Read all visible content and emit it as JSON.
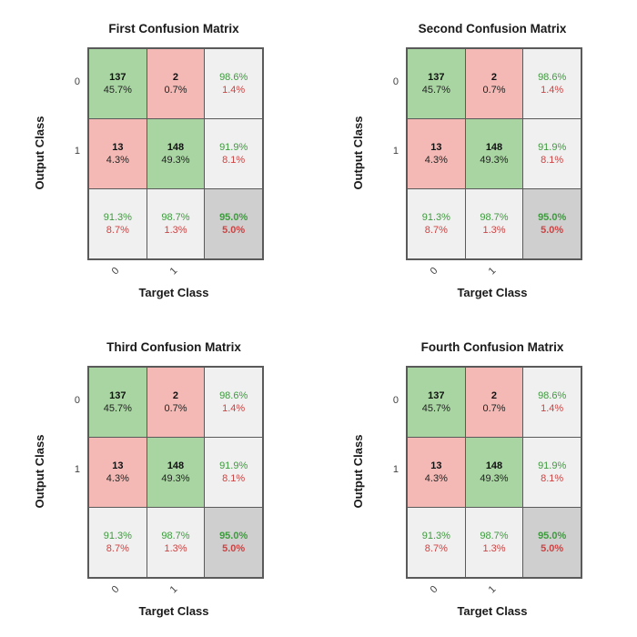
{
  "palette": {
    "correct_fill": "#a8d5a2",
    "incorrect_fill": "#f4b9b4",
    "summary_fill": "#f0f0f0",
    "total_fill": "#cfcfcf",
    "good_text": "#3c9c3c",
    "bad_text": "#cc4444",
    "grid_line": "#5a5a5a"
  },
  "chart_data": [
    {
      "type": "heatmap",
      "title": "First Confusion Matrix",
      "xlabel": "Target Class",
      "ylabel": "Output Class",
      "row_tick_labels": [
        "0",
        "1"
      ],
      "col_tick_labels": [
        "0",
        "1"
      ],
      "matrix_counts": [
        [
          137,
          2
        ],
        [
          13,
          148
        ]
      ],
      "cells": [
        {
          "line1": "137",
          "line2": "45.7%",
          "kind": "correct"
        },
        {
          "line1": "2",
          "line2": "0.7%",
          "kind": "incorrect"
        },
        {
          "line1": "98.6%",
          "line2": "1.4%",
          "kind": "summary"
        },
        {
          "line1": "13",
          "line2": "4.3%",
          "kind": "incorrect"
        },
        {
          "line1": "148",
          "line2": "49.3%",
          "kind": "correct"
        },
        {
          "line1": "91.9%",
          "line2": "8.1%",
          "kind": "summary"
        },
        {
          "line1": "91.3%",
          "line2": "8.7%",
          "kind": "summary"
        },
        {
          "line1": "98.7%",
          "line2": "1.3%",
          "kind": "summary"
        },
        {
          "line1": "95.0%",
          "line2": "5.0%",
          "kind": "total"
        }
      ]
    },
    {
      "type": "heatmap",
      "title": "Second Confusion Matrix",
      "xlabel": "Target Class",
      "ylabel": "Output Class",
      "row_tick_labels": [
        "0",
        "1"
      ],
      "col_tick_labels": [
        "0",
        "1"
      ],
      "matrix_counts": [
        [
          137,
          2
        ],
        [
          13,
          148
        ]
      ],
      "cells": [
        {
          "line1": "137",
          "line2": "45.7%",
          "kind": "correct"
        },
        {
          "line1": "2",
          "line2": "0.7%",
          "kind": "incorrect"
        },
        {
          "line1": "98.6%",
          "line2": "1.4%",
          "kind": "summary"
        },
        {
          "line1": "13",
          "line2": "4.3%",
          "kind": "incorrect"
        },
        {
          "line1": "148",
          "line2": "49.3%",
          "kind": "correct"
        },
        {
          "line1": "91.9%",
          "line2": "8.1%",
          "kind": "summary"
        },
        {
          "line1": "91.3%",
          "line2": "8.7%",
          "kind": "summary"
        },
        {
          "line1": "98.7%",
          "line2": "1.3%",
          "kind": "summary"
        },
        {
          "line1": "95.0%",
          "line2": "5.0%",
          "kind": "total"
        }
      ]
    },
    {
      "type": "heatmap",
      "title": "Third Confusion Matrix",
      "xlabel": "Target Class",
      "ylabel": "Output Class",
      "row_tick_labels": [
        "0",
        "1"
      ],
      "col_tick_labels": [
        "0",
        "1"
      ],
      "matrix_counts": [
        [
          137,
          2
        ],
        [
          13,
          148
        ]
      ],
      "cells": [
        {
          "line1": "137",
          "line2": "45.7%",
          "kind": "correct"
        },
        {
          "line1": "2",
          "line2": "0.7%",
          "kind": "incorrect"
        },
        {
          "line1": "98.6%",
          "line2": "1.4%",
          "kind": "summary"
        },
        {
          "line1": "13",
          "line2": "4.3%",
          "kind": "incorrect"
        },
        {
          "line1": "148",
          "line2": "49.3%",
          "kind": "correct"
        },
        {
          "line1": "91.9%",
          "line2": "8.1%",
          "kind": "summary"
        },
        {
          "line1": "91.3%",
          "line2": "8.7%",
          "kind": "summary"
        },
        {
          "line1": "98.7%",
          "line2": "1.3%",
          "kind": "summary"
        },
        {
          "line1": "95.0%",
          "line2": "5.0%",
          "kind": "total"
        }
      ]
    },
    {
      "type": "heatmap",
      "title": "Fourth Confusion Matrix",
      "xlabel": "Target Class",
      "ylabel": "Output Class",
      "row_tick_labels": [
        "0",
        "1"
      ],
      "col_tick_labels": [
        "0",
        "1"
      ],
      "matrix_counts": [
        [
          137,
          2
        ],
        [
          13,
          148
        ]
      ],
      "cells": [
        {
          "line1": "137",
          "line2": "45.7%",
          "kind": "correct"
        },
        {
          "line1": "2",
          "line2": "0.7%",
          "kind": "incorrect"
        },
        {
          "line1": "98.6%",
          "line2": "1.4%",
          "kind": "summary"
        },
        {
          "line1": "13",
          "line2": "4.3%",
          "kind": "incorrect"
        },
        {
          "line1": "148",
          "line2": "49.3%",
          "kind": "correct"
        },
        {
          "line1": "91.9%",
          "line2": "8.1%",
          "kind": "summary"
        },
        {
          "line1": "91.3%",
          "line2": "8.7%",
          "kind": "summary"
        },
        {
          "line1": "98.7%",
          "line2": "1.3%",
          "kind": "summary"
        },
        {
          "line1": "95.0%",
          "line2": "5.0%",
          "kind": "total"
        }
      ]
    }
  ]
}
